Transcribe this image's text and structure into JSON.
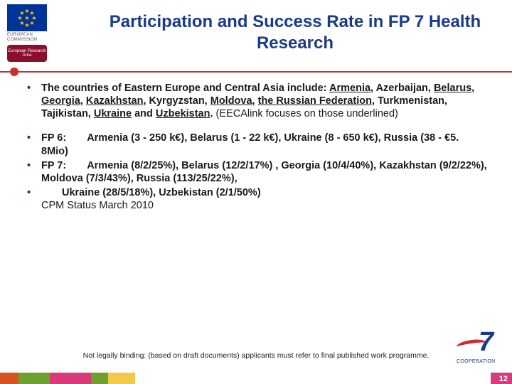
{
  "logo": {
    "commission_line1": "EUROPEAN",
    "commission_line2": "COMMISSION",
    "era": "European Research Area"
  },
  "title": "Participation and Success Rate in FP 7 Health Research",
  "bullets": {
    "b1": {
      "pre": "The countries of Eastern Europe and Central Asia include: ",
      "c1": "Armenia",
      "s1": ", Azerbaijan, ",
      "c2": "Belarus",
      "s2": ", ",
      "c3": "Georgia",
      "s3": ", ",
      "c4": "Kazakhstan",
      "s4": ", Kyrgyzstan, ",
      "c5": "Moldova",
      "s5": ", ",
      "c6": "the Russian Federation",
      "s6": ", Turkmenistan, Tajikistan, ",
      "c7": "Ukraine",
      "s7": " and ",
      "c8": "Uzbekistan",
      "s8": ". ",
      "note": "(EECAlink focuses on those underlined)"
    },
    "b2": "FP 6:  Armenia (3 - 250 k€), Belarus (1 - 22 k€), Ukraine (8 - 650 k€), Russia (38 - €5. 8Mio)",
    "b3": "FP 7:  Armenia (8/2/25%), Belarus (12/2/17%) , Georgia (10/4/40%), Kazakhstan (9/2/22%), Moldova (7/3/43%), Russia (113/25/22%),",
    "b4_a": "  Ukraine (28/5/18%), Uzbekistan (2/1/50%)",
    "b4_b": "CPM Status March 2010"
  },
  "footnote": "Not legally binding: (based on draft documents) applicants must refer to final published work programme.",
  "fp7": {
    "seven": "7",
    "label": "COOPERATION"
  },
  "page_number": "12"
}
